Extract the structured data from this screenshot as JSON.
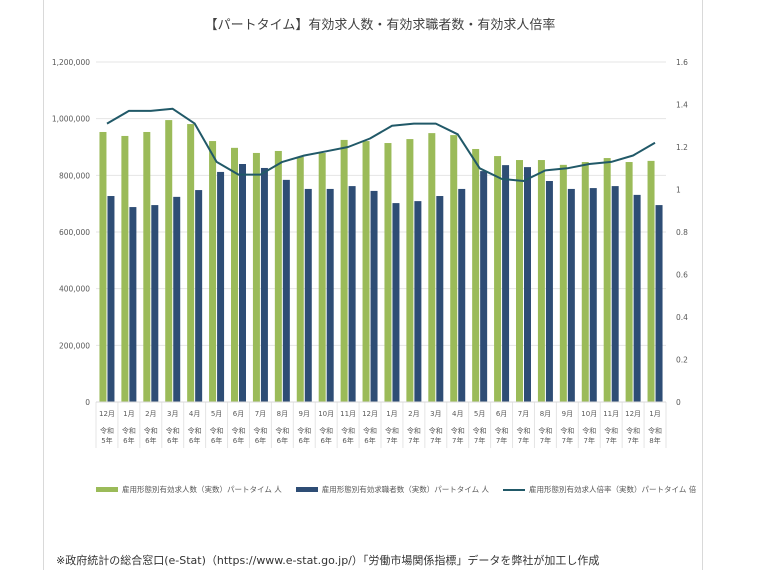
{
  "chart_data": {
    "type": "bar",
    "title": "【パートタイム】有効求人数・有効求職者数・有効求人倍率",
    "categories": [
      {
        "month": "12月",
        "era": "令和",
        "year": "5年"
      },
      {
        "month": "1月",
        "era": "令和",
        "year": "6年"
      },
      {
        "month": "2月",
        "era": "令和",
        "year": "6年"
      },
      {
        "month": "3月",
        "era": "令和",
        "year": "6年"
      },
      {
        "month": "4月",
        "era": "令和",
        "year": "6年"
      },
      {
        "month": "5月",
        "era": "令和",
        "year": "6年"
      },
      {
        "month": "6月",
        "era": "令和",
        "year": "6年"
      },
      {
        "month": "7月",
        "era": "令和",
        "year": "6年"
      },
      {
        "month": "8月",
        "era": "令和",
        "year": "6年"
      },
      {
        "month": "9月",
        "era": "令和",
        "year": "6年"
      },
      {
        "month": "10月",
        "era": "令和",
        "year": "6年"
      },
      {
        "month": "11月",
        "era": "令和",
        "year": "6年"
      },
      {
        "month": "12月",
        "era": "令和",
        "year": "6年"
      },
      {
        "month": "1月",
        "era": "令和",
        "year": "7年"
      },
      {
        "month": "2月",
        "era": "令和",
        "year": "7年"
      },
      {
        "month": "3月",
        "era": "令和",
        "year": "7年"
      },
      {
        "month": "4月",
        "era": "令和",
        "year": "7年"
      },
      {
        "month": "5月",
        "era": "令和",
        "year": "7年"
      },
      {
        "month": "6月",
        "era": "令和",
        "year": "7年"
      },
      {
        "month": "7月",
        "era": "令和",
        "year": "7年"
      },
      {
        "month": "8月",
        "era": "令和",
        "year": "7年"
      },
      {
        "month": "9月",
        "era": "令和",
        "year": "7年"
      },
      {
        "month": "10月",
        "era": "令和",
        "year": "7年"
      },
      {
        "month": "11月",
        "era": "令和",
        "year": "7年"
      },
      {
        "month": "12月",
        "era": "令和",
        "year": "7年"
      },
      {
        "month": "1月",
        "era": "令和",
        "year": "8年"
      }
    ],
    "series": [
      {
        "name": "雇用形態別有効求人数（実数）パートタイム 人",
        "type": "bar",
        "axis": "left",
        "color": "#9bbb59",
        "values": [
          953000,
          939000,
          953000,
          995000,
          981000,
          921000,
          897000,
          879000,
          886000,
          865000,
          879000,
          925000,
          921000,
          914000,
          928000,
          949000,
          942000,
          893000,
          868000,
          854000,
          854000,
          837000,
          847000,
          861000,
          847000,
          851000
        ]
      },
      {
        "name": "雇用形態別有効求職者数（実数）パートタイム 人",
        "type": "bar",
        "axis": "left",
        "color": "#2e4d75",
        "values": [
          727000,
          688000,
          695000,
          724000,
          748000,
          812000,
          840000,
          826000,
          784000,
          752000,
          752000,
          762000,
          745000,
          702000,
          709000,
          727000,
          752000,
          815000,
          836000,
          829000,
          780000,
          752000,
          755000,
          762000,
          731000,
          695000
        ]
      },
      {
        "name": "雇用形態別有効求人倍率（実数）パートタイム 倍",
        "type": "line",
        "axis": "right",
        "color": "#215968",
        "values": [
          1.31,
          1.37,
          1.37,
          1.38,
          1.31,
          1.13,
          1.07,
          1.07,
          1.13,
          1.16,
          1.18,
          1.2,
          1.24,
          1.3,
          1.31,
          1.31,
          1.26,
          1.1,
          1.05,
          1.04,
          1.09,
          1.1,
          1.12,
          1.13,
          1.16,
          1.22
        ]
      }
    ],
    "left_axis": {
      "ticks": [
        "0",
        "200,000",
        "400,000",
        "600,000",
        "800,000",
        "1,000,000",
        "1,200,000"
      ],
      "ylim": [
        0,
        1200000
      ]
    },
    "right_axis": {
      "ticks": [
        "0",
        "0.2",
        "0.4",
        "0.6",
        "0.8",
        "1",
        "1.2",
        "1.4",
        "1.6"
      ],
      "ylim": [
        0,
        1.6
      ]
    },
    "grid": true,
    "legend_position": "bottom",
    "xlabel": "",
    "ylabel": ""
  },
  "legend": [
    {
      "label": "雇用形態別有効求人数（実数）パートタイム 人",
      "kind": "bar",
      "color": "#9bbb59"
    },
    {
      "label": "雇用形態別有効求職者数（実数）パートタイム 人",
      "kind": "bar",
      "color": "#2e4d75"
    },
    {
      "label": "雇用形態別有効求人倍率（実数）パートタイム 倍",
      "kind": "line",
      "color": "#215968"
    }
  ],
  "footnote": "※政府統計の総合窓口(e-Stat)（https://www.e-stat.go.jp/）「労働市場関係指標」データを弊社が加工し作成"
}
